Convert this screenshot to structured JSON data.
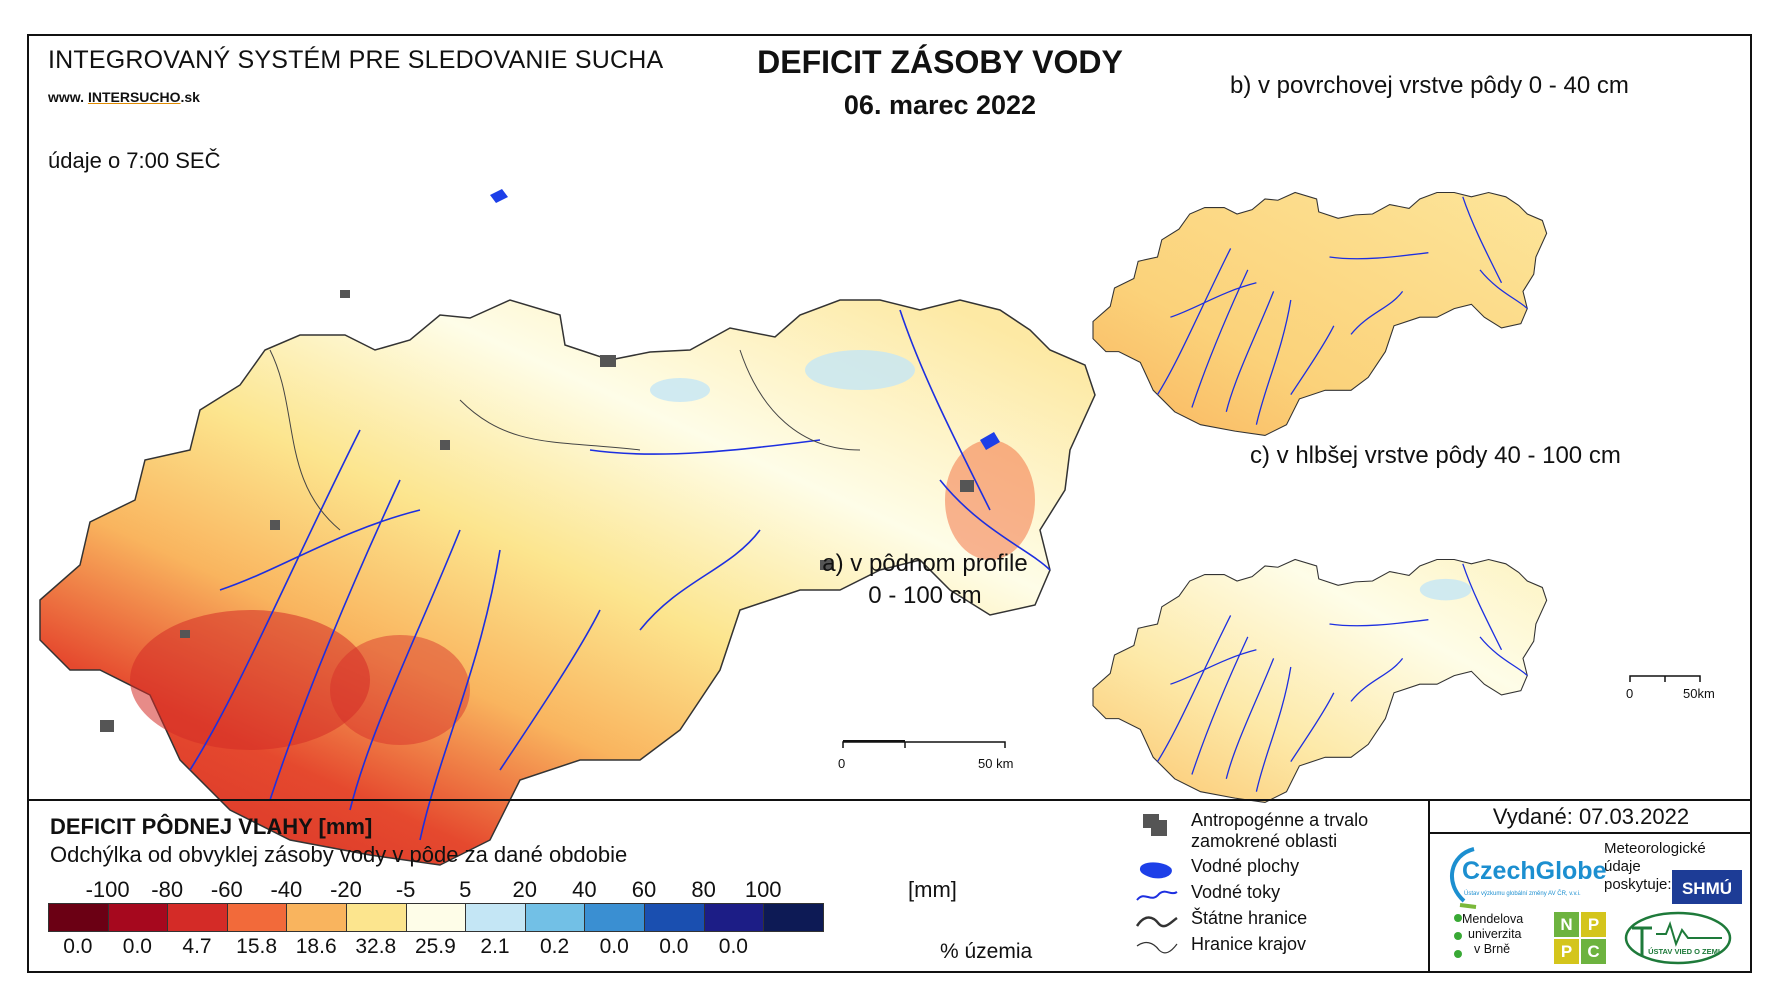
{
  "header": {
    "system_title": "INTEGROVANÝ SYSTÉM PRE SLEDOVANIE SUCHA",
    "website_prefix": "www. ",
    "website_brand": "INTERSUCHO",
    "website_suffix": ".sk",
    "time_note": "údaje o 7:00 SEČ",
    "main_title": "DEFICIT ZÁSOBY VODY",
    "date": "06. marec 2022"
  },
  "maps": {
    "main_label_line1": "a) v pôdnom profile",
    "main_label_line2": "0 - 100 cm",
    "inset_b_label": "b) v povrchovej vrstve pôdy 0 - 40 cm",
    "inset_c_label": "c) v hlbšej vrstve pôdy 40 - 100 cm",
    "main_scale": {
      "start": "0",
      "end": "50 km"
    },
    "inset_scale": {
      "start": "0",
      "end": "50km"
    }
  },
  "legend": {
    "title": "DEFICIT PÔDNEJ VLAHY [mm]",
    "subtitle": "Odchýlka od obvyklej zásoby vody v pôde za dané obdobie",
    "unit": "[mm]",
    "percent_unit": "% územia",
    "ticks": [
      "-100",
      "-80",
      "-60",
      "-40",
      "-20",
      "-5",
      "5",
      "20",
      "40",
      "60",
      "80",
      "100"
    ],
    "classes": [
      {
        "color": "#6b0014",
        "percent": "0.0"
      },
      {
        "color": "#a6081e",
        "percent": "0.0"
      },
      {
        "color": "#d42b27",
        "percent": "4.7"
      },
      {
        "color": "#f26a3a",
        "percent": "15.8"
      },
      {
        "color": "#f9b45e",
        "percent": "18.6"
      },
      {
        "color": "#fce58e",
        "percent": "32.8"
      },
      {
        "color": "#fefde8",
        "percent": "25.9"
      },
      {
        "color": "#c4e6f5",
        "percent": "2.1"
      },
      {
        "color": "#72c0e6",
        "percent": "0.2"
      },
      {
        "color": "#3a8fd2",
        "percent": "0.0"
      },
      {
        "color": "#1a4fb0",
        "percent": "0.0"
      },
      {
        "color": "#1c1d86",
        "percent": "0.0"
      },
      {
        "color": "#0d1a55",
        "percent": ""
      }
    ]
  },
  "map_key": [
    {
      "icon": "urban-area-icon",
      "label": "Antropogénne a trvalo zamokrené oblasti"
    },
    {
      "icon": "water-body-icon",
      "label": "Vodné plochy"
    },
    {
      "icon": "river-icon",
      "label": "Vodné toky"
    },
    {
      "icon": "state-border-icon",
      "label": "Štátne hranice"
    },
    {
      "icon": "region-border-icon",
      "label": "Hranice krajov"
    }
  ],
  "credits": {
    "issued": "Vydané: 07.03.2022",
    "czechglobe": "CzechGlobe",
    "czechglobe_sub": "Ústav výzkumu globální změny AV ČR, v.v.i.",
    "met_line1": "Meteorologické",
    "met_line2": "údaje",
    "met_line3": "poskytuje:",
    "shmu": "SHMÚ",
    "mendel_line1": "Mendelova",
    "mendel_line2": "univerzita",
    "mendel_line3": "v Brně",
    "npc": [
      "N",
      "P",
      "P",
      "C"
    ],
    "uvz": "ÚSTAV VIED O ZEMI"
  },
  "colors": {
    "river": "#1d2fe0",
    "urban": "#555555"
  }
}
